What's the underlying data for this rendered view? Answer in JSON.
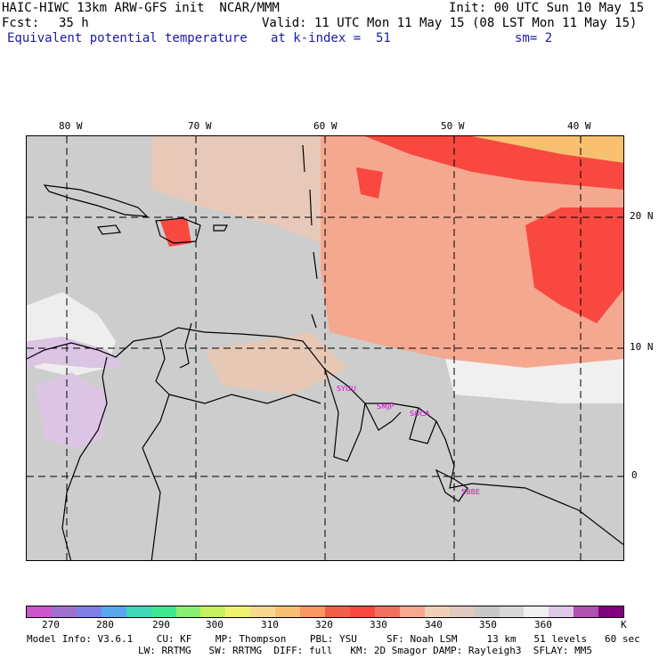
{
  "header": {
    "model_title": "HAIC-HIWC 13km ARW-GFS init  NCAR/MMM",
    "init": "Init: 00 UTC Sun 10 May 15",
    "fcst_label": "Fcst:",
    "fcst_value": "35 h",
    "valid": "Valid: 11 UTC Mon 11 May 15 (08 LST Mon 11 May 15)",
    "field_name": "Equivalent potential temperature",
    "level": "at k-index =  51",
    "smoothing": "sm= 2"
  },
  "axes": {
    "lon_labels": [
      "80 W",
      "70 W",
      "60 W",
      "50 W",
      "40 W"
    ],
    "lat_labels": [
      "20 N",
      "10 N",
      "0"
    ]
  },
  "stations": [
    "SYGU",
    "SMJP",
    "SOCA",
    "SBBE"
  ],
  "colorbar": {
    "ticks": [
      "270",
      "280",
      "290",
      "300",
      "310",
      "320",
      "330",
      "340",
      "350",
      "360",
      "K"
    ],
    "colors": [
      "#cc55cc",
      "#a070d0",
      "#8080e8",
      "#58a8f0",
      "#40d8b8",
      "#40e890",
      "#88f070",
      "#c8f060",
      "#f0f070",
      "#f8d890",
      "#f8c070",
      "#f89860",
      "#f06048",
      "#f84840",
      "#f07060",
      "#f8a890",
      "#f0d0b8",
      "#e0c8c0",
      "#c8c8c8",
      "#d8d8d8",
      "#f0f0f0",
      "#e0c8e8",
      "#b050b0",
      "#800080"
    ]
  },
  "footer": {
    "line1": "Model Info: V3.6.1    CU: KF    MP: Thompson    PBL: YSU     SF: Noah LSM     13 km   51 levels   60 sec",
    "line2": "LW: RRTMG   SW: RRTMG  DIFF: full   KM: 2D Smagor DAMP: Rayleigh3  SFLAY: MM5"
  }
}
